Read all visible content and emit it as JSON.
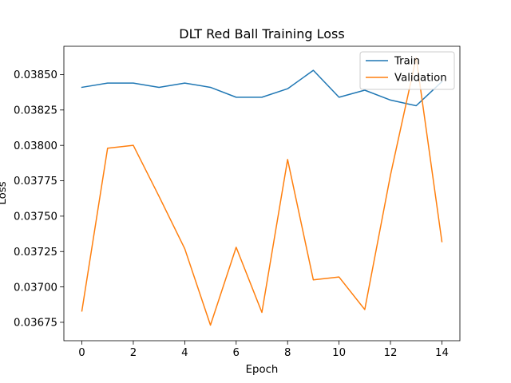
{
  "chart_data": {
    "type": "line",
    "title": "DLT Red Ball Training Loss",
    "xlabel": "Epoch",
    "ylabel": "Loss",
    "x": [
      0,
      1,
      2,
      3,
      4,
      5,
      6,
      7,
      8,
      9,
      10,
      11,
      12,
      13,
      14
    ],
    "xlim": [
      -0.7,
      14.7
    ],
    "ylim": [
      0.03662,
      0.0387
    ],
    "xticks": [
      0,
      2,
      4,
      6,
      8,
      10,
      12,
      14
    ],
    "yticks": [
      0.03675,
      0.037,
      0.03725,
      0.0375,
      0.03775,
      0.038,
      0.03825,
      0.0385
    ],
    "ytick_labels": [
      "0.03675",
      "0.03700",
      "0.03725",
      "0.03750",
      "0.03775",
      "0.03800",
      "0.03825",
      "0.03850"
    ],
    "grid": false,
    "legend_position": "top-right",
    "series": [
      {
        "name": "Train",
        "color": "#1f77b4",
        "values": [
          0.03841,
          0.03844,
          0.03844,
          0.03841,
          0.03844,
          0.03841,
          0.03834,
          0.03834,
          0.0384,
          0.03853,
          0.03834,
          0.03839,
          0.03832,
          0.03828,
          0.03845
        ]
      },
      {
        "name": "Validation",
        "color": "#ff7f0e",
        "values": [
          0.03683,
          0.03798,
          0.038,
          0.03764,
          0.03727,
          0.03673,
          0.03728,
          0.03682,
          0.0379,
          0.03705,
          0.03707,
          0.03684,
          0.03779,
          0.03862,
          0.03732
        ]
      }
    ]
  }
}
